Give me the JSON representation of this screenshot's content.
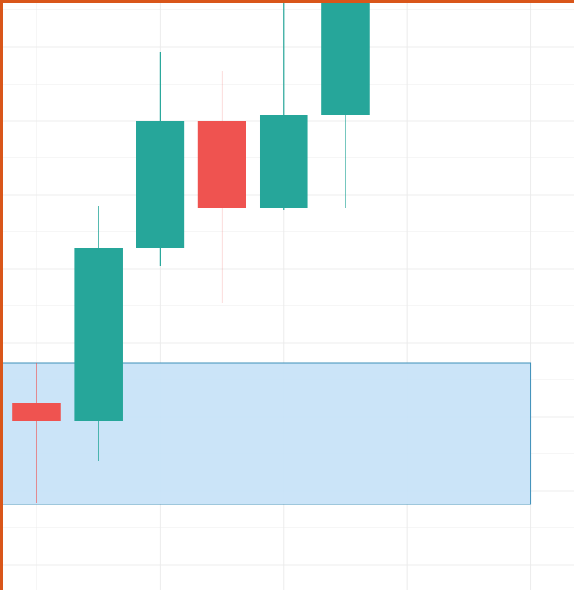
{
  "chart_data": {
    "type": "candlestick",
    "x": [
      0,
      1,
      2,
      3,
      4,
      5
    ],
    "open": [
      270,
      245,
      494,
      678,
      552,
      687
    ],
    "high": [
      328,
      555,
      778,
      751,
      870,
      900
    ],
    "low": [
      126,
      186,
      468,
      415,
      549,
      552
    ],
    "close": [
      245,
      494,
      678,
      552,
      687,
      900
    ],
    "up_color": "#26a69a",
    "down_color": "#ef5350",
    "xlim": [
      -0.594,
      8.7
    ],
    "xticks": [
      0,
      2,
      4,
      6,
      8
    ],
    "ylim": [
      0,
      853
    ],
    "yticks": [
      36,
      90,
      143,
      197,
      250,
      304,
      357,
      411,
      464,
      518,
      571,
      625,
      678,
      731,
      785,
      839
    ],
    "grid": true,
    "zones": [
      {
        "low": 124,
        "high": 328,
        "x_end": 8,
        "color": "#c8e3f8",
        "edge_color": "#3d8fb8"
      }
    ]
  }
}
